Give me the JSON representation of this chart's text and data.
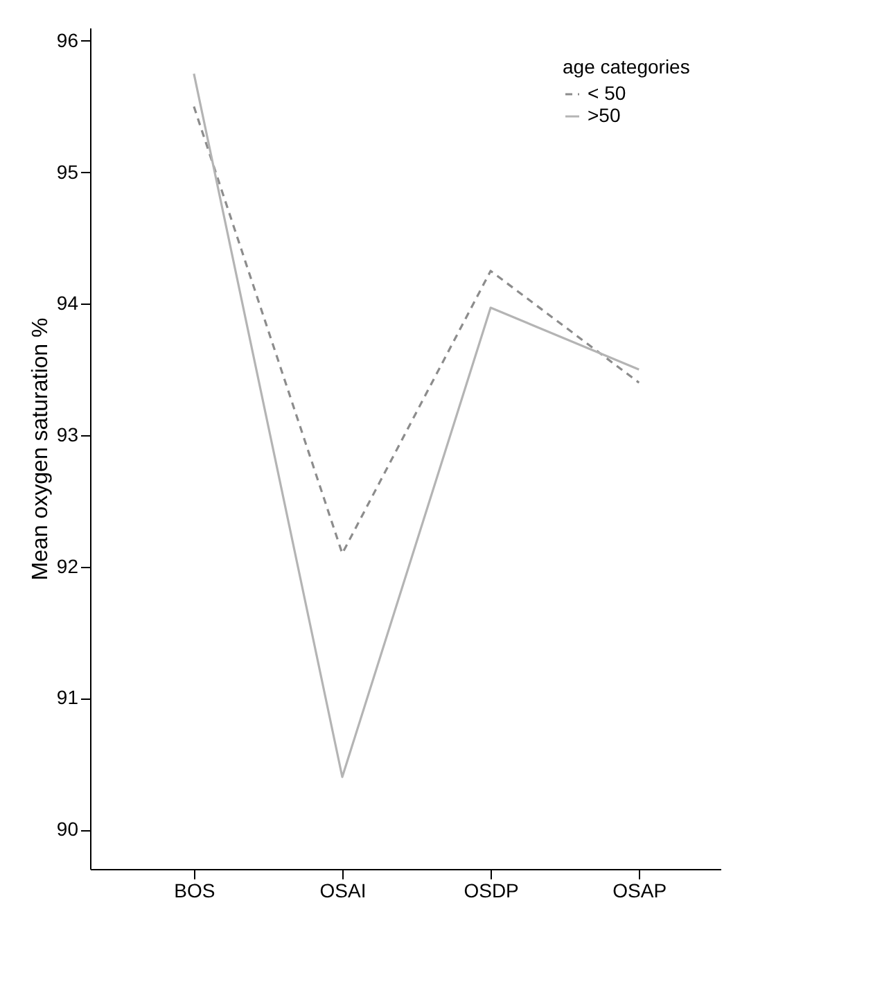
{
  "chart_data": {
    "type": "line",
    "ylabel": "Mean oxygen saturation %",
    "legend_title": "age categories",
    "legend": "top right",
    "categories": [
      "BOS",
      "OSAI",
      "OSDP",
      "OSAP"
    ],
    "series": [
      {
        "name": "< 50",
        "color": "#8c8c8c",
        "line_style": "dashed",
        "values": [
          95.5,
          92.1,
          94.25,
          93.4
        ]
      },
      {
        "name": ">50",
        "color": "#b4b4b4",
        "line_style": "solid",
        "values": [
          95.75,
          90.4,
          93.97,
          93.5
        ]
      }
    ],
    "ylim": [
      89.7,
      96.1
    ],
    "yticks": [
      90,
      91,
      92,
      93,
      94,
      95,
      96
    ],
    "grid": false,
    "marker": "none"
  }
}
